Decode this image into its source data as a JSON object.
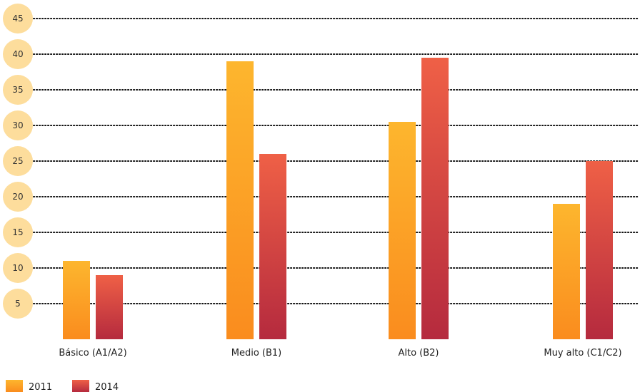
{
  "chart_data": {
    "type": "bar",
    "title": "",
    "xlabel": "",
    "ylabel": "",
    "categories": [
      "Básico (A1/A2)",
      "Medio (B1)",
      "Alto (B2)",
      "Muy alto (C1/C2)"
    ],
    "series": [
      {
        "name": "2011",
        "values": [
          11,
          39,
          30.5,
          19
        ]
      },
      {
        "name": "2014",
        "values": [
          9,
          26,
          39.5,
          25
        ]
      }
    ],
    "y_ticks": [
      5,
      10,
      15,
      20,
      25,
      30,
      35,
      40,
      45
    ],
    "ylim": [
      0,
      45
    ],
    "grid": "dotted horizontal",
    "legend_position": "bottom-left",
    "colors": {
      "2011_top": "#FDB62E",
      "2011_bottom": "#FA8C1E",
      "2014_top": "#EF6046",
      "2014_bottom": "#B52A3E",
      "tick_circle": "#FDDD9C",
      "grid": "#111111"
    }
  }
}
